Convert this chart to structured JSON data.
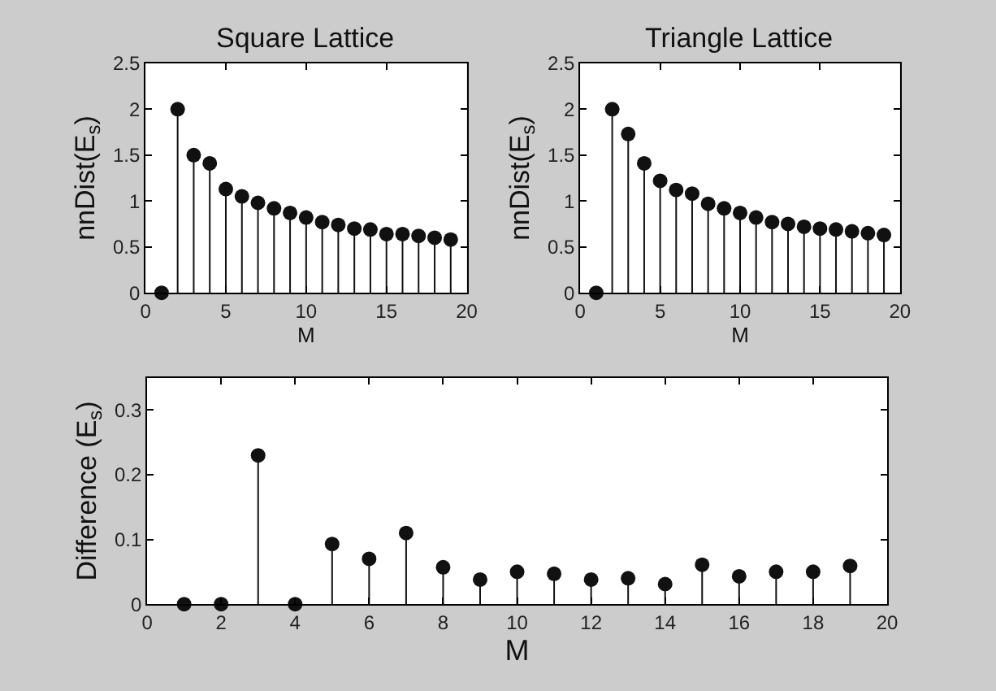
{
  "chart_data": [
    {
      "type": "lollipop",
      "title": "Square Lattice",
      "xlabel": "M",
      "ylabel": "nnDist(E$_{s}$)",
      "x": [
        1,
        2,
        3,
        4,
        5,
        6,
        7,
        8,
        9,
        10,
        11,
        12,
        13,
        14,
        15,
        16,
        17,
        18,
        19
      ],
      "values": [
        0,
        2,
        1.5,
        1.41,
        1.13,
        1.05,
        0.98,
        0.92,
        0.87,
        0.82,
        0.77,
        0.74,
        0.7,
        0.69,
        0.64,
        0.64,
        0.62,
        0.6,
        0.58
      ],
      "color": "#111111",
      "marker": "circle",
      "xlim": [
        0,
        20
      ],
      "xticks": [
        0,
        5,
        10,
        15,
        20
      ],
      "ylim": [
        0,
        2.5
      ],
      "yticks": [
        0,
        0.5,
        1,
        1.5,
        2,
        2.5
      ]
    },
    {
      "type": "lollipop",
      "title": "Triangle Lattice",
      "xlabel": "M",
      "ylabel": "nnDist(E$_{s}$)",
      "x": [
        1,
        2,
        3,
        4,
        5,
        6,
        7,
        8,
        9,
        10,
        11,
        12,
        13,
        14,
        15,
        16,
        17,
        18,
        19
      ],
      "values": [
        0,
        2,
        1.73,
        1.41,
        1.22,
        1.12,
        1.08,
        0.97,
        0.92,
        0.87,
        0.82,
        0.77,
        0.75,
        0.72,
        0.7,
        0.69,
        0.67,
        0.65,
        0.63
      ],
      "color": "#111111",
      "marker": "circle",
      "xlim": [
        0,
        20
      ],
      "xticks": [
        0,
        5,
        10,
        15,
        20
      ],
      "ylim": [
        0,
        2.5
      ],
      "yticks": [
        0,
        0.5,
        1,
        1.5,
        2,
        2.5
      ]
    },
    {
      "type": "lollipop",
      "xlabel": "M",
      "ylabel": "Difference (E$_{s}$)",
      "x": [
        1,
        2,
        3,
        4,
        5,
        6,
        7,
        8,
        9,
        10,
        11,
        12,
        13,
        14,
        15,
        16,
        17,
        18,
        19
      ],
      "values": [
        0,
        0,
        0.23,
        0,
        0.093,
        0.07,
        0.11,
        0.057,
        0.038,
        0.05,
        0.047,
        0.038,
        0.04,
        0.031,
        0.061,
        0.043,
        0.05,
        0.05,
        0.059
      ],
      "color": "#111111",
      "marker": "circle",
      "xlim": [
        0,
        20
      ],
      "xticks": [
        0,
        2,
        4,
        6,
        8,
        10,
        12,
        14,
        16,
        18,
        20
      ],
      "ylim": [
        0,
        0.35
      ],
      "yticks": [
        0,
        0.1,
        0.2,
        0.3
      ]
    }
  ]
}
